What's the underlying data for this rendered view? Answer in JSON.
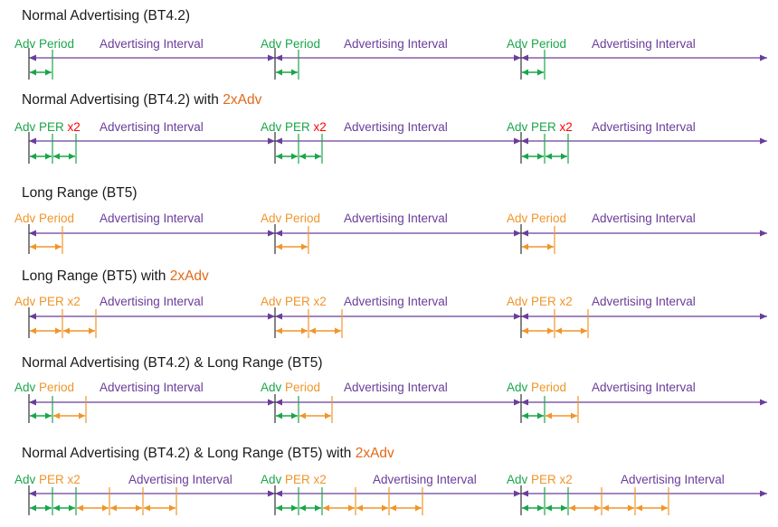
{
  "colors": {
    "green": "#1aa64a",
    "orange": "#f0952a",
    "purple": "#6a3d9a",
    "title": "#1a1a1a",
    "highlight": "#e06a1a"
  },
  "rows": [
    {
      "title": "Normal Advertising (BT4.2)",
      "title_highlight": "",
      "group_labels": [
        {
          "text": "Adv Period",
          "color": "green"
        }
      ],
      "interval_label": "Advertising Interval",
      "segments": [
        "green"
      ]
    },
    {
      "title": "Normal Advertising (BT4.2) with ",
      "title_highlight": "2xAdv",
      "group_labels": [
        {
          "text": "Adv PER",
          "color": "green"
        },
        {
          "text": "x2",
          "color": "red"
        }
      ],
      "interval_label": "Advertising Interval",
      "segments": [
        "green",
        "green"
      ]
    },
    {
      "title": "Long Range (BT5)",
      "title_highlight": "",
      "group_labels": [
        {
          "text": "Adv Period",
          "color": "orange"
        }
      ],
      "interval_label": "Advertising Interval",
      "segments": [
        "orange"
      ]
    },
    {
      "title": "Long Range (BT5) with ",
      "title_highlight": "2xAdv",
      "group_labels": [
        {
          "text": "Adv PER x2",
          "color": "orange"
        }
      ],
      "interval_label": "Advertising Interval",
      "segments": [
        "orange",
        "orange"
      ]
    },
    {
      "title": "Normal Advertising (BT4.2) & Long Range (BT5)",
      "title_highlight": "",
      "group_labels": [
        {
          "text": "Adv",
          "color": "green"
        },
        {
          "text": "Period",
          "color": "orange"
        }
      ],
      "interval_label": "Advertising Interval",
      "segments": [
        "green",
        "orange"
      ]
    },
    {
      "title": "Normal Advertising (BT4.2) & Long Range (BT5) with ",
      "title_highlight": "2xAdv",
      "group_labels": [
        {
          "text": "Adv",
          "color": "green"
        },
        {
          "text": "PER",
          "color": "orange"
        },
        {
          "text": "x2",
          "color": "orange"
        }
      ],
      "interval_label": "Advertising Interval",
      "segments": [
        "green",
        "green",
        "orange",
        "orange",
        "orange"
      ]
    }
  ]
}
